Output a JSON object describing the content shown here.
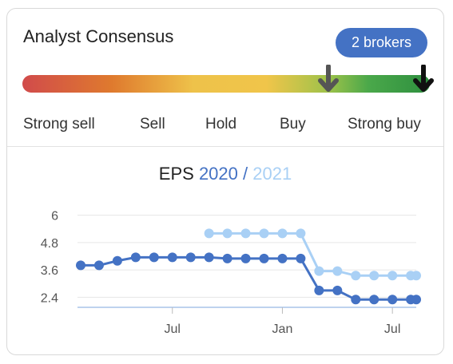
{
  "card": {
    "title": "Analyst Consensus",
    "brokers_label": "2 brokers"
  },
  "gauge": {
    "labels": [
      "Strong sell",
      "Sell",
      "Hold",
      "Buy",
      "Strong buy"
    ],
    "colors": [
      "#d14b4b",
      "#df7a2e",
      "#f0c54a",
      "#4aa84a",
      "#2e8f3f"
    ],
    "previous_rating_fraction": 0.75,
    "current_rating_fraction": 0.985,
    "previous_arrow_color": "#555555",
    "current_arrow_color": "#111111"
  },
  "chart_data": {
    "type": "line",
    "title_prefix": "EPS",
    "title_sep": "/",
    "x_tick_labels": [
      "Jul",
      "Jan",
      "Jul"
    ],
    "y_tick_labels": [
      "6",
      "4.8",
      "3.6",
      "2.4"
    ],
    "ylim": [
      2.1,
      6.3
    ],
    "grid": true,
    "series": [
      {
        "name": "2020",
        "color": "#4472c4",
        "points": [
          [
            0,
            3.8
          ],
          [
            1,
            3.8
          ],
          [
            2,
            4.0
          ],
          [
            3,
            4.15
          ],
          [
            4,
            4.15
          ],
          [
            5,
            4.15
          ],
          [
            6,
            4.15
          ],
          [
            7,
            4.15
          ],
          [
            8,
            4.1
          ],
          [
            9,
            4.1
          ],
          [
            10,
            4.1
          ],
          [
            11,
            4.1
          ],
          [
            12,
            4.1
          ],
          [
            13,
            2.7
          ],
          [
            14,
            2.7
          ],
          [
            15,
            2.3
          ],
          [
            16,
            2.3
          ],
          [
            17,
            2.3
          ],
          [
            18,
            2.3
          ],
          [
            18.3,
            2.3
          ]
        ]
      },
      {
        "name": "2021",
        "color": "#a9d0f5",
        "points": [
          [
            7,
            5.2
          ],
          [
            8,
            5.2
          ],
          [
            9,
            5.2
          ],
          [
            10,
            5.2
          ],
          [
            11,
            5.2
          ],
          [
            12,
            5.2
          ],
          [
            13,
            3.55
          ],
          [
            14,
            3.55
          ],
          [
            15,
            3.35
          ],
          [
            16,
            3.35
          ],
          [
            17,
            3.35
          ],
          [
            18,
            3.35
          ],
          [
            18.3,
            3.35
          ]
        ]
      }
    ]
  }
}
